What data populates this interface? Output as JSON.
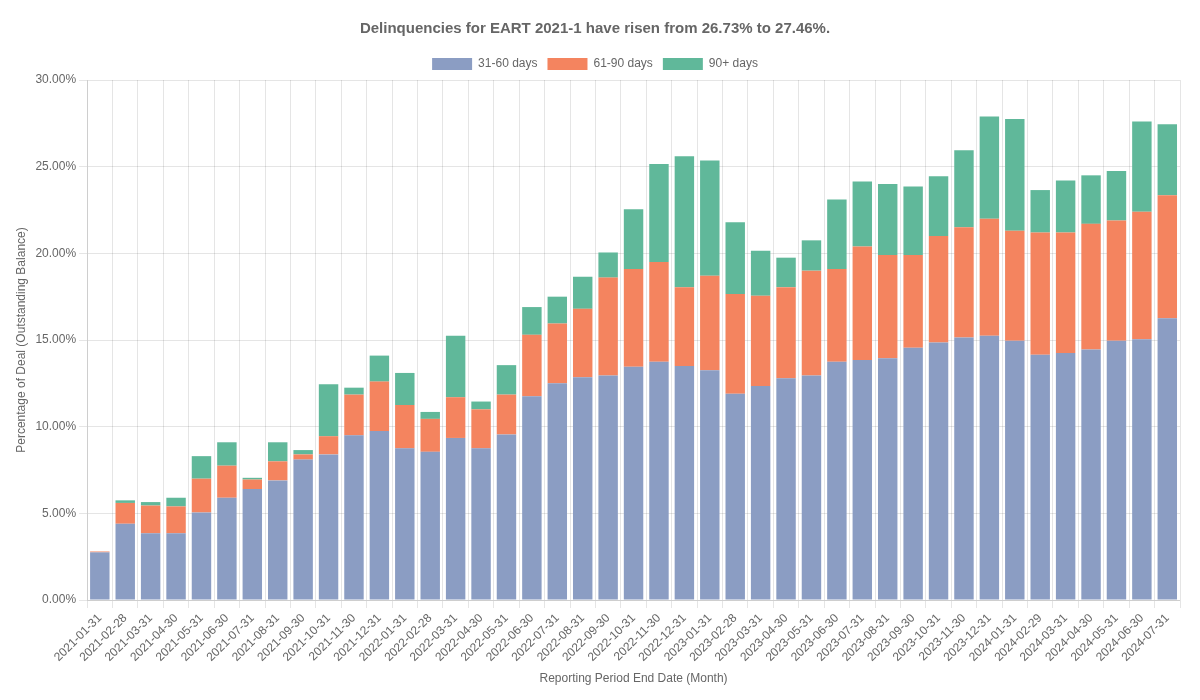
{
  "chart_data": {
    "type": "bar",
    "stacked": true,
    "title": "Delinquencies for EART 2021-1 have risen from 26.73% to 27.46%.",
    "xlabel": "Reporting Period End Date (Month)",
    "ylabel": "Percentage of Deal (Outstanding Balance)",
    "categories": [
      "2021-01-31",
      "2021-02-28",
      "2021-03-31",
      "2021-04-30",
      "2021-05-31",
      "2021-06-30",
      "2021-07-31",
      "2021-08-31",
      "2021-09-30",
      "2021-10-31",
      "2021-11-30",
      "2021-12-31",
      "2022-01-31",
      "2022-02-28",
      "2022-03-31",
      "2022-04-30",
      "2022-05-31",
      "2022-06-30",
      "2022-07-31",
      "2022-08-31",
      "2022-09-30",
      "2022-10-31",
      "2022-11-30",
      "2022-12-31",
      "2023-01-31",
      "2023-02-28",
      "2023-03-31",
      "2023-04-30",
      "2023-05-31",
      "2023-06-30",
      "2023-07-31",
      "2023-08-31",
      "2023-09-30",
      "2023-10-31",
      "2023-11-30",
      "2023-12-31",
      "2024-01-31",
      "2024-02-29",
      "2024-03-31",
      "2024-04-30",
      "2024-05-31",
      "2024-06-30",
      "2024-07-31"
    ],
    "series": [
      {
        "name": "31-60 days",
        "color": "#8B9DC3",
        "values": [
          2.75,
          4.4,
          3.85,
          3.85,
          5.05,
          5.9,
          6.4,
          6.9,
          8.1,
          8.4,
          9.5,
          9.75,
          8.75,
          8.55,
          9.35,
          8.75,
          9.55,
          11.75,
          12.5,
          12.85,
          12.95,
          13.45,
          13.75,
          13.5,
          13.25,
          11.9,
          12.35,
          12.8,
          12.95,
          13.75,
          13.85,
          13.95,
          14.55,
          14.85,
          15.15,
          15.25,
          14.95,
          14.15,
          14.25,
          14.45,
          14.95,
          15.05,
          16.25
        ]
      },
      {
        "name": "61-90 days",
        "color": "#F4845F",
        "values": [
          0.05,
          1.2,
          1.6,
          1.55,
          1.95,
          1.85,
          0.55,
          1.1,
          0.3,
          1.05,
          2.35,
          2.85,
          2.5,
          1.9,
          2.35,
          2.25,
          2.3,
          3.55,
          3.45,
          3.95,
          5.65,
          5.65,
          5.75,
          4.55,
          5.45,
          5.75,
          5.2,
          5.25,
          6.05,
          5.35,
          6.55,
          5.95,
          5.35,
          6.15,
          6.35,
          6.75,
          6.35,
          7.05,
          6.95,
          7.25,
          6.95,
          7.35,
          7.1
        ]
      },
      {
        "name": "90+ days",
        "color": "#60B89A",
        "values": [
          0.0,
          0.15,
          0.2,
          0.5,
          1.3,
          1.35,
          0.1,
          1.1,
          0.25,
          3.0,
          0.4,
          1.5,
          1.85,
          0.4,
          3.55,
          0.45,
          1.7,
          1.6,
          1.55,
          1.85,
          1.45,
          3.45,
          5.65,
          7.55,
          6.65,
          4.15,
          2.6,
          1.7,
          1.75,
          4.0,
          3.75,
          4.1,
          3.95,
          3.45,
          4.45,
          5.9,
          6.45,
          2.45,
          3.0,
          2.8,
          2.85,
          5.2,
          4.1
        ]
      }
    ],
    "ylim": [
      0,
      30
    ],
    "yticks": [
      {
        "value": 0,
        "label": "0.00%"
      },
      {
        "value": 5,
        "label": "5.00%"
      },
      {
        "value": 10,
        "label": "10.00%"
      },
      {
        "value": 15,
        "label": "15.00%"
      },
      {
        "value": 20,
        "label": "20.00%"
      },
      {
        "value": 25,
        "label": "25.00%"
      },
      {
        "value": 30,
        "label": "30.00%"
      }
    ],
    "grid": true,
    "legend": "top"
  }
}
